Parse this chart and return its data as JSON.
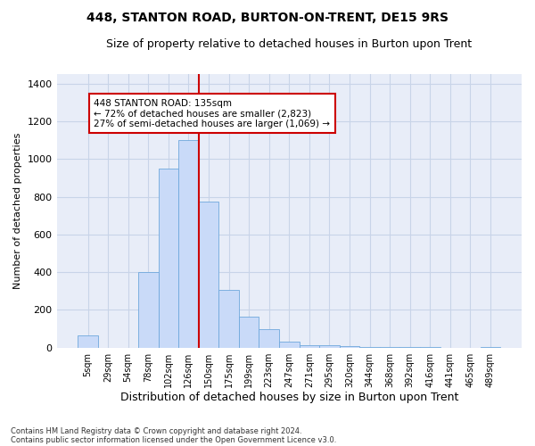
{
  "title1": "448, STANTON ROAD, BURTON-ON-TRENT, DE15 9RS",
  "title2": "Size of property relative to detached houses in Burton upon Trent",
  "xlabel": "Distribution of detached houses by size in Burton upon Trent",
  "ylabel": "Number of detached properties",
  "footnote1": "Contains HM Land Registry data © Crown copyright and database right 2024.",
  "footnote2": "Contains public sector information licensed under the Open Government Licence v3.0.",
  "bar_labels": [
    "5sqm",
    "29sqm",
    "54sqm",
    "78sqm",
    "102sqm",
    "126sqm",
    "150sqm",
    "175sqm",
    "199sqm",
    "223sqm",
    "247sqm",
    "271sqm",
    "295sqm",
    "320sqm",
    "344sqm",
    "368sqm",
    "392sqm",
    "416sqm",
    "441sqm",
    "465sqm",
    "489sqm"
  ],
  "bar_values": [
    65,
    0,
    0,
    400,
    950,
    1100,
    775,
    305,
    165,
    100,
    30,
    15,
    12,
    10,
    5,
    3,
    2,
    1,
    0,
    0,
    5
  ],
  "bar_color": "#c9daf8",
  "bar_edge_color": "#6fa8dc",
  "vline_x": 5.5,
  "vline_color": "#cc0000",
  "annotation_text": "448 STANTON ROAD: 135sqm\n← 72% of detached houses are smaller (2,823)\n27% of semi-detached houses are larger (1,069) →",
  "ylim": [
    0,
    1450
  ],
  "yticks": [
    0,
    200,
    400,
    600,
    800,
    1000,
    1200,
    1400
  ],
  "grid_color": "#c8d4e8",
  "bg_color": "#e8edf8",
  "title1_fontsize": 10,
  "title2_fontsize": 9,
  "xlabel_fontsize": 9,
  "ylabel_fontsize": 8,
  "annot_fontsize": 7.5
}
